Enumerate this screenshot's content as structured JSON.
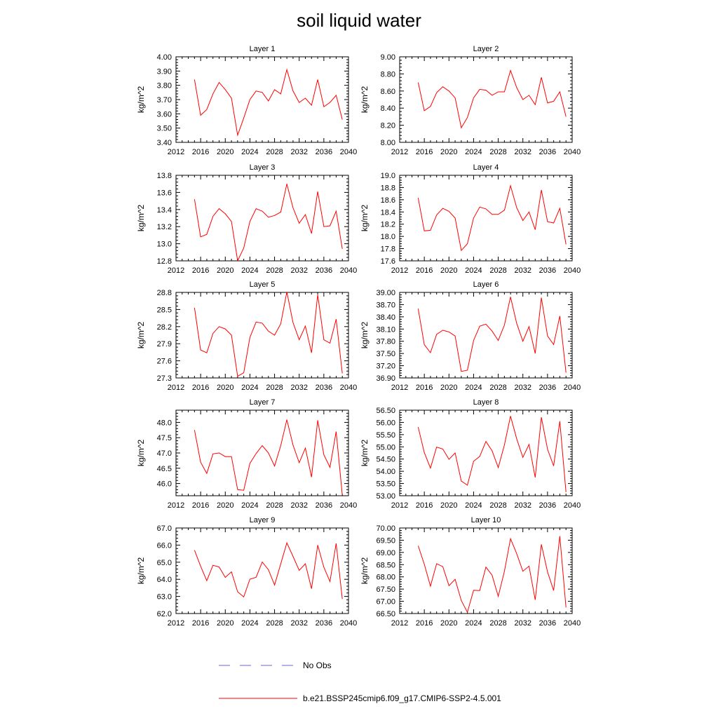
{
  "title": "soil liquid water",
  "legend": [
    {
      "label": "No Obs",
      "color": "#6a6ad0",
      "style": "dashed"
    },
    {
      "label": "b.e21.BSSP245cmip6.f09_g17.CMIP6-SSP2-4.5.001",
      "color": "#ff0000",
      "style": "solid"
    }
  ],
  "chart_data": [
    {
      "type": "line",
      "title": "Layer 1",
      "ylabel": "kg/m^2",
      "xlim": [
        2012,
        2040
      ],
      "xticks": [
        2012,
        2016,
        2020,
        2024,
        2028,
        2032,
        2036,
        2040
      ],
      "xtick_labels": [
        "2012",
        "2016",
        "2020",
        "2024",
        "2028",
        "2032",
        "2036",
        "2040"
      ],
      "ylim": [
        3.4,
        4.0
      ],
      "yticks": [
        3.4,
        3.5,
        3.6,
        3.7,
        3.8,
        3.9,
        4.0
      ],
      "ytick_labels": [
        "3.40",
        "3.50",
        "3.60",
        "3.70",
        "3.80",
        "3.90",
        "4.00"
      ],
      "series": [
        {
          "color": "#ff0000",
          "x": [
            2015,
            2016,
            2017,
            2018,
            2019,
            2020,
            2021,
            2022,
            2023,
            2024,
            2025,
            2026,
            2027,
            2028,
            2029,
            2030,
            2031,
            2032,
            2033,
            2034,
            2035,
            2036,
            2037,
            2038,
            2039
          ],
          "y": [
            3.84,
            3.59,
            3.63,
            3.74,
            3.82,
            3.77,
            3.71,
            3.45,
            3.57,
            3.7,
            3.76,
            3.75,
            3.69,
            3.77,
            3.74,
            3.91,
            3.76,
            3.68,
            3.71,
            3.66,
            3.84,
            3.65,
            3.68,
            3.73,
            3.56
          ]
        }
      ]
    },
    {
      "type": "line",
      "title": "Layer 2",
      "ylabel": "kg/m^2",
      "xlim": [
        2012,
        2040
      ],
      "xticks": [
        2012,
        2016,
        2020,
        2024,
        2028,
        2032,
        2036,
        2040
      ],
      "xtick_labels": [
        "2012",
        "2016",
        "2020",
        "2024",
        "2028",
        "2032",
        "2036",
        "2040"
      ],
      "ylim": [
        8.0,
        9.0
      ],
      "yticks": [
        8.0,
        8.2,
        8.4,
        8.6,
        8.8,
        9.0
      ],
      "ytick_labels": [
        "8.00",
        "8.20",
        "8.40",
        "8.60",
        "8.80",
        "9.00"
      ],
      "series": [
        {
          "color": "#ff0000",
          "x": [
            2015,
            2016,
            2017,
            2018,
            2019,
            2020,
            2021,
            2022,
            2023,
            2024,
            2025,
            2026,
            2027,
            2028,
            2029,
            2030,
            2031,
            2032,
            2033,
            2034,
            2035,
            2036,
            2037,
            2038,
            2039
          ],
          "y": [
            8.7,
            8.37,
            8.42,
            8.58,
            8.65,
            8.6,
            8.52,
            8.17,
            8.29,
            8.52,
            8.62,
            8.61,
            8.55,
            8.59,
            8.59,
            8.84,
            8.64,
            8.5,
            8.55,
            8.44,
            8.76,
            8.46,
            8.48,
            8.59,
            8.3
          ]
        }
      ]
    },
    {
      "type": "line",
      "title": "Layer 3",
      "ylabel": "kg/m^2",
      "xlim": [
        2012,
        2040
      ],
      "xticks": [
        2012,
        2016,
        2020,
        2024,
        2028,
        2032,
        2036,
        2040
      ],
      "xtick_labels": [
        "2012",
        "2016",
        "2020",
        "2024",
        "2028",
        "2032",
        "2036",
        "2040"
      ],
      "ylim": [
        12.8,
        13.8
      ],
      "yticks": [
        12.8,
        13.0,
        13.2,
        13.4,
        13.6,
        13.8
      ],
      "ytick_labels": [
        "12.8",
        "13.0",
        "13.2",
        "13.4",
        "13.6",
        "13.8"
      ],
      "series": [
        {
          "color": "#ff0000",
          "x": [
            2015,
            2016,
            2017,
            2018,
            2019,
            2020,
            2021,
            2022,
            2023,
            2024,
            2025,
            2026,
            2027,
            2028,
            2029,
            2030,
            2031,
            2032,
            2033,
            2034,
            2035,
            2036,
            2037,
            2038,
            2039
          ],
          "y": [
            13.52,
            13.08,
            13.11,
            13.32,
            13.41,
            13.35,
            13.26,
            12.8,
            12.95,
            13.26,
            13.41,
            13.38,
            13.31,
            13.33,
            13.37,
            13.7,
            13.42,
            13.24,
            13.34,
            13.12,
            13.61,
            13.2,
            13.21,
            13.38,
            12.94
          ]
        }
      ]
    },
    {
      "type": "line",
      "title": "Layer 4",
      "ylabel": "kg/m^2",
      "xlim": [
        2012,
        2040
      ],
      "xticks": [
        2012,
        2016,
        2020,
        2024,
        2028,
        2032,
        2036,
        2040
      ],
      "xtick_labels": [
        "2012",
        "2016",
        "2020",
        "2024",
        "2028",
        "2032",
        "2036",
        "2040"
      ],
      "ylim": [
        17.6,
        19.0
      ],
      "yticks": [
        17.6,
        17.8,
        18.0,
        18.2,
        18.4,
        18.6,
        18.8,
        19.0
      ],
      "ytick_labels": [
        "17.6",
        "17.8",
        "18.0",
        "18.2",
        "18.4",
        "18.6",
        "18.8",
        "19.0"
      ],
      "series": [
        {
          "color": "#ff0000",
          "x": [
            2015,
            2016,
            2017,
            2018,
            2019,
            2020,
            2021,
            2022,
            2023,
            2024,
            2025,
            2026,
            2027,
            2028,
            2029,
            2030,
            2031,
            2032,
            2033,
            2034,
            2035,
            2036,
            2037,
            2038,
            2039
          ],
          "y": [
            18.63,
            18.09,
            18.1,
            18.35,
            18.46,
            18.41,
            18.3,
            17.77,
            17.88,
            18.3,
            18.48,
            18.45,
            18.36,
            18.36,
            18.43,
            18.83,
            18.47,
            18.26,
            18.4,
            18.11,
            18.76,
            18.24,
            18.22,
            18.46,
            17.87
          ]
        }
      ]
    },
    {
      "type": "line",
      "title": "Layer 5",
      "ylabel": "kg/m^2",
      "xlim": [
        2012,
        2040
      ],
      "xticks": [
        2012,
        2016,
        2020,
        2024,
        2028,
        2032,
        2036,
        2040
      ],
      "xtick_labels": [
        "2012",
        "2016",
        "2020",
        "2024",
        "2028",
        "2032",
        "2036",
        "2040"
      ],
      "ylim": [
        27.3,
        28.8
      ],
      "yticks": [
        27.3,
        27.6,
        27.9,
        28.2,
        28.5,
        28.8
      ],
      "ytick_labels": [
        "27.3",
        "27.6",
        "27.9",
        "28.2",
        "28.5",
        "28.8"
      ],
      "series": [
        {
          "color": "#ff0000",
          "x": [
            2015,
            2016,
            2017,
            2018,
            2019,
            2020,
            2021,
            2022,
            2023,
            2024,
            2025,
            2026,
            2027,
            2028,
            2029,
            2030,
            2031,
            2032,
            2033,
            2034,
            2035,
            2036,
            2037,
            2038,
            2039
          ],
          "y": [
            28.53,
            27.79,
            27.74,
            28.08,
            28.2,
            28.16,
            28.05,
            27.33,
            27.39,
            28.01,
            28.28,
            28.26,
            28.12,
            28.05,
            28.25,
            28.81,
            28.27,
            27.97,
            28.21,
            27.74,
            28.76,
            27.97,
            27.91,
            28.33,
            27.38
          ]
        }
      ]
    },
    {
      "type": "line",
      "title": "Layer 6",
      "ylabel": "kg/m^2",
      "xlim": [
        2012,
        2040
      ],
      "xticks": [
        2012,
        2016,
        2020,
        2024,
        2028,
        2032,
        2036,
        2040
      ],
      "xtick_labels": [
        "2012",
        "2016",
        "2020",
        "2024",
        "2028",
        "2032",
        "2036",
        "2040"
      ],
      "ylim": [
        36.9,
        39.0
      ],
      "yticks": [
        36.9,
        37.2,
        37.5,
        37.8,
        38.1,
        38.4,
        38.7,
        39.0
      ],
      "ytick_labels": [
        "36.90",
        "37.20",
        "37.50",
        "37.80",
        "38.10",
        "38.40",
        "38.70",
        "39.00"
      ],
      "series": [
        {
          "color": "#ff0000",
          "x": [
            2015,
            2016,
            2017,
            2018,
            2019,
            2020,
            2021,
            2022,
            2023,
            2024,
            2025,
            2026,
            2027,
            2028,
            2029,
            2030,
            2031,
            2032,
            2033,
            2034,
            2035,
            2036,
            2037,
            2038,
            2039
          ],
          "y": [
            38.6,
            37.72,
            37.52,
            37.97,
            38.07,
            38.03,
            37.93,
            37.06,
            37.09,
            37.82,
            38.17,
            38.22,
            38.05,
            37.82,
            38.2,
            38.89,
            38.24,
            37.8,
            38.16,
            37.5,
            38.87,
            37.93,
            37.72,
            38.42,
            37.03
          ]
        }
      ]
    },
    {
      "type": "line",
      "title": "Layer 7",
      "ylabel": "kg/m^2",
      "xlim": [
        2012,
        2040
      ],
      "xticks": [
        2012,
        2016,
        2020,
        2024,
        2028,
        2032,
        2036,
        2040
      ],
      "xtick_labels": [
        "2012",
        "2016",
        "2020",
        "2024",
        "2028",
        "2032",
        "2036",
        "2040"
      ],
      "ylim": [
        45.6,
        48.4
      ],
      "yticks": [
        46.0,
        46.5,
        47.0,
        47.5,
        48.0
      ],
      "ytick_labels": [
        "46.0",
        "46.5",
        "47.0",
        "47.5",
        "48.0"
      ],
      "series": [
        {
          "color": "#ff0000",
          "x": [
            2015,
            2016,
            2017,
            2018,
            2019,
            2020,
            2021,
            2022,
            2023,
            2024,
            2025,
            2026,
            2027,
            2028,
            2029,
            2030,
            2031,
            2032,
            2033,
            2034,
            2035,
            2036,
            2037,
            2038,
            2039
          ],
          "y": [
            47.75,
            46.7,
            46.33,
            46.97,
            47.0,
            46.88,
            46.88,
            45.8,
            45.78,
            46.66,
            46.98,
            47.24,
            47.0,
            46.57,
            47.24,
            48.09,
            47.26,
            46.68,
            47.16,
            46.21,
            48.07,
            46.94,
            46.53,
            47.7,
            45.62
          ]
        }
      ]
    },
    {
      "type": "line",
      "title": "Layer 8",
      "ylabel": "kg/m^2",
      "xlim": [
        2012,
        2040
      ],
      "xticks": [
        2012,
        2016,
        2020,
        2024,
        2028,
        2032,
        2036,
        2040
      ],
      "xtick_labels": [
        "2012",
        "2016",
        "2020",
        "2024",
        "2028",
        "2032",
        "2036",
        "2040"
      ],
      "ylim": [
        53.0,
        56.5
      ],
      "yticks": [
        53.0,
        53.5,
        54.0,
        54.5,
        55.0,
        55.5,
        56.0,
        56.5
      ],
      "ytick_labels": [
        "53.00",
        "53.50",
        "54.00",
        "54.50",
        "55.00",
        "55.50",
        "56.00",
        "56.50"
      ],
      "series": [
        {
          "color": "#ff0000",
          "x": [
            2015,
            2016,
            2017,
            2018,
            2019,
            2020,
            2021,
            2022,
            2023,
            2024,
            2025,
            2026,
            2027,
            2028,
            2029,
            2030,
            2031,
            2032,
            2033,
            2034,
            2035,
            2036,
            2037,
            2038,
            2039
          ],
          "y": [
            55.81,
            54.77,
            54.13,
            54.99,
            54.91,
            54.49,
            54.75,
            53.6,
            53.43,
            54.41,
            54.61,
            55.22,
            54.84,
            54.15,
            55.08,
            56.26,
            55.33,
            54.57,
            55.1,
            53.75,
            56.21,
            54.9,
            54.22,
            56.05,
            53.15
          ]
        }
      ]
    },
    {
      "type": "line",
      "title": "Layer 9",
      "ylabel": "kg/m^2",
      "xlim": [
        2012,
        2040
      ],
      "xticks": [
        2012,
        2016,
        2020,
        2024,
        2028,
        2032,
        2036,
        2040
      ],
      "xtick_labels": [
        "2012",
        "2016",
        "2020",
        "2024",
        "2028",
        "2032",
        "2036",
        "2040"
      ],
      "ylim": [
        62.0,
        67.0
      ],
      "yticks": [
        62.0,
        63.0,
        64.0,
        65.0,
        66.0,
        67.0
      ],
      "ytick_labels": [
        "62.0",
        "63.0",
        "64.0",
        "65.0",
        "66.0",
        "67.0"
      ],
      "series": [
        {
          "color": "#ff0000",
          "x": [
            2015,
            2016,
            2017,
            2018,
            2019,
            2020,
            2021,
            2022,
            2023,
            2024,
            2025,
            2026,
            2027,
            2028,
            2029,
            2030,
            2031,
            2032,
            2033,
            2034,
            2035,
            2036,
            2037,
            2038,
            2039
          ],
          "y": [
            65.7,
            64.77,
            63.92,
            64.82,
            64.72,
            64.11,
            64.44,
            63.27,
            62.97,
            64.01,
            64.12,
            65.01,
            64.56,
            63.67,
            64.9,
            66.13,
            65.34,
            64.52,
            64.91,
            63.45,
            66.0,
            64.7,
            63.87,
            66.1,
            62.85
          ]
        }
      ]
    },
    {
      "type": "line",
      "title": "Layer 10",
      "ylabel": "kg/m^2",
      "xlim": [
        2012,
        2040
      ],
      "xticks": [
        2012,
        2016,
        2020,
        2024,
        2028,
        2032,
        2036,
        2040
      ],
      "xtick_labels": [
        "2012",
        "2016",
        "2020",
        "2024",
        "2028",
        "2032",
        "2036",
        "2040"
      ],
      "ylim": [
        66.5,
        70.0
      ],
      "yticks": [
        66.5,
        67.0,
        67.5,
        68.0,
        68.5,
        69.0,
        69.5,
        70.0
      ],
      "ytick_labels": [
        "66.50",
        "67.00",
        "67.50",
        "68.00",
        "68.50",
        "69.00",
        "69.50",
        "70.00"
      ],
      "series": [
        {
          "color": "#ff0000",
          "x": [
            2015,
            2016,
            2017,
            2018,
            2019,
            2020,
            2021,
            2022,
            2023,
            2024,
            2025,
            2026,
            2027,
            2028,
            2029,
            2030,
            2031,
            2032,
            2033,
            2034,
            2035,
            2036,
            2037,
            2038,
            2039
          ],
          "y": [
            69.27,
            68.52,
            67.62,
            68.54,
            68.42,
            67.64,
            67.9,
            67.03,
            66.55,
            67.45,
            67.44,
            68.4,
            68.07,
            67.2,
            68.23,
            69.56,
            68.95,
            68.23,
            68.44,
            67.06,
            69.33,
            68.2,
            67.44,
            69.67,
            66.75
          ]
        }
      ]
    }
  ]
}
